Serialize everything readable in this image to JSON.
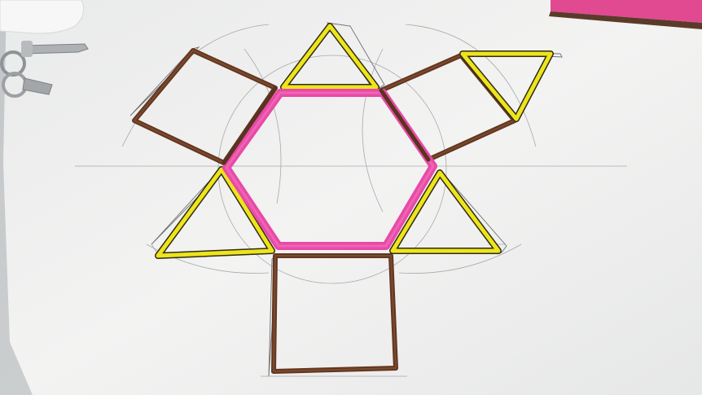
{
  "scene": {
    "subject": "hexagonal-prism-net-drawing",
    "colors": {
      "paper": "#f1f1ef",
      "paper_shadow": "#dcdede",
      "background": "#c7cacc",
      "hexagon_outline": "#ec4fb0",
      "triangle_outline": "#ece21a",
      "square_outline": "#5a3320",
      "pencil_line": "#7d7f82",
      "marker_pink": "#e8489c",
      "marker_brown": "#6b3a26",
      "keys": "#a6a9ad"
    }
  }
}
